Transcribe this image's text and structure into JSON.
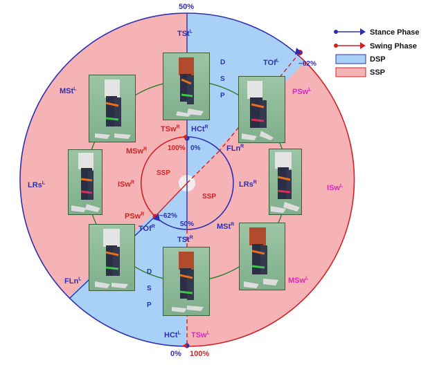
{
  "colors": {
    "stance_blue": "#2d2fb0",
    "swing_red": "#d42020",
    "dsp_fill": "#a9d1f7",
    "ssp_fill": "#f6b3b6",
    "magenta": "#e020c8",
    "connector_green": "#2e7d2e",
    "photo_bg": "#8fb99a"
  },
  "legend": {
    "stance": "Stance Phase",
    "swing": "Swing Phase",
    "dsp": "DSP",
    "ssp": "SSP"
  },
  "outer": {
    "top_pct": "50%",
    "bottom_left_pct": "0%",
    "bottom_right_pct": "100%",
    "tof_pct": "~62%",
    "dsp_letters": [
      "D",
      "S",
      "P"
    ],
    "labels": {
      "tst": {
        "base": "TSt",
        "sup": "L"
      },
      "tof": {
        "base": "TOf",
        "sup": "L"
      },
      "psw": {
        "base": "PSw",
        "sup": "L"
      },
      "isw": {
        "base": "ISw",
        "sup": "L"
      },
      "msw": {
        "base": "MSw",
        "sup": "L"
      },
      "tsw": {
        "base": "TSw",
        "sup": "L"
      },
      "hct": {
        "base": "HCt",
        "sup": "L"
      },
      "fln": {
        "base": "FLn",
        "sup": "L"
      },
      "lrs": {
        "base": "LRs",
        "sup": "L"
      },
      "mst": {
        "base": "MSt",
        "sup": "L"
      }
    }
  },
  "inner": {
    "pct_100": "100%",
    "pct_0": "0%",
    "pct_50": "50%",
    "pct_62": "~62%",
    "ssp_left": "SSP",
    "ssp_right": "SSP",
    "labels": {
      "tsw": {
        "base": "TSw",
        "sup": "R"
      },
      "hct": {
        "base": "HCt",
        "sup": "R"
      },
      "fln": {
        "base": "FLn",
        "sup": "R"
      },
      "lrs": {
        "base": "LRs",
        "sup": "R"
      },
      "mst": {
        "base": "MSt",
        "sup": "R"
      },
      "tst": {
        "base": "TSt",
        "sup": "R"
      },
      "tof": {
        "base": "TOf",
        "sup": "R"
      },
      "psw": {
        "base": "PSw",
        "sup": "R"
      },
      "isw": {
        "base": "ISw",
        "sup": "R"
      },
      "msw": {
        "base": "MSw",
        "sup": "R"
      }
    }
  }
}
